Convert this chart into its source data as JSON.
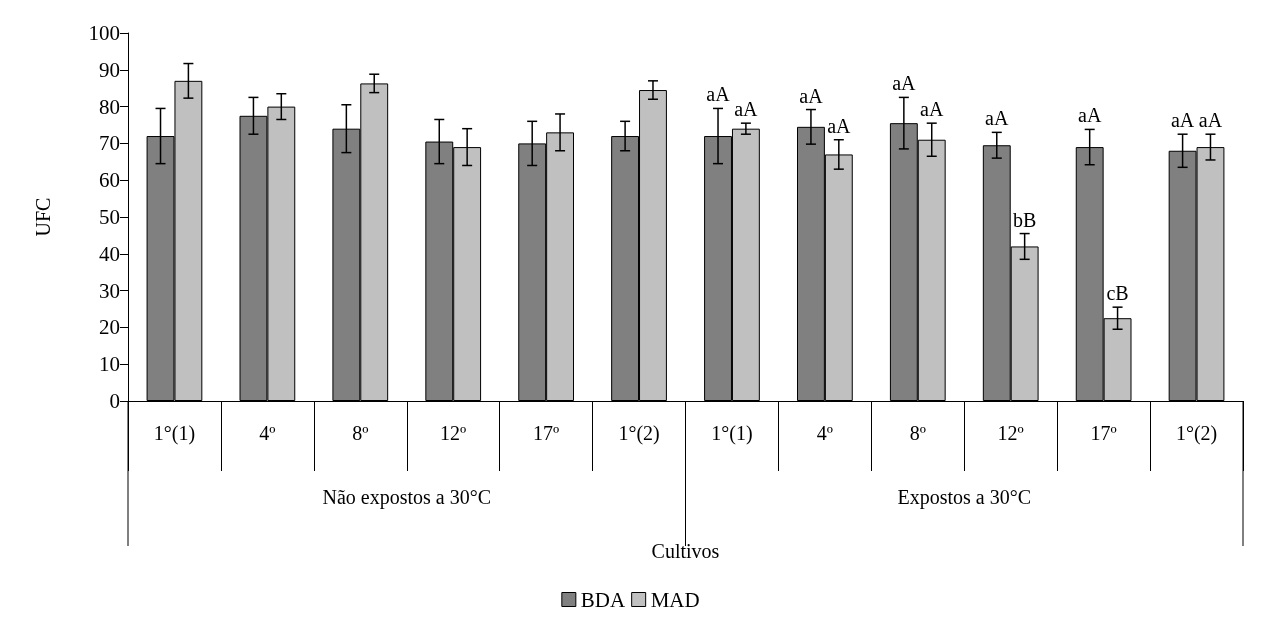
{
  "chart_data": {
    "type": "bar",
    "xlabel": "Cultivos",
    "ylabel": "UFC",
    "categories": [
      "1°(1)",
      "4º",
      "8º",
      "12º",
      "17º",
      "1°(2)",
      "1°(1)",
      "4º",
      "8º",
      "12º",
      "17º",
      "1°(2)"
    ],
    "annotations": [
      "Não expostos a 30°C",
      "Expostos a 30°C"
    ],
    "series": [
      {
        "name": "BDA",
        "color": "#808080",
        "values": [
          72,
          77.5,
          74,
          70.5,
          70,
          72,
          72,
          74.5,
          75.5,
          69.5,
          69,
          68
        ],
        "errors": [
          7.5,
          5,
          6.5,
          6,
          6,
          4,
          7.5,
          4.7,
          7,
          3.5,
          4.8,
          4.5
        ],
        "value_labels": [
          null,
          null,
          null,
          null,
          null,
          null,
          "aA",
          "aA",
          "aA",
          "aA",
          "aA",
          "aA"
        ]
      },
      {
        "name": "MAD",
        "color": "#c0c0c0",
        "values": [
          87,
          80,
          86.3,
          69,
          73,
          84.5,
          74,
          67,
          71,
          42,
          22.5,
          69
        ],
        "errors": [
          4.7,
          3.5,
          2.5,
          5,
          5,
          2.5,
          1.5,
          4,
          4.5,
          3.5,
          3,
          3.5
        ],
        "value_labels": [
          null,
          null,
          null,
          null,
          null,
          null,
          "aA",
          "aA",
          "aA",
          "bB",
          "cB",
          "aA"
        ]
      }
    ],
    "ylim": [
      0,
      100
    ],
    "yticks": [
      0,
      10,
      20,
      30,
      40,
      50,
      60,
      70,
      80,
      90,
      100
    ],
    "grid": false,
    "legend": "bottom"
  }
}
